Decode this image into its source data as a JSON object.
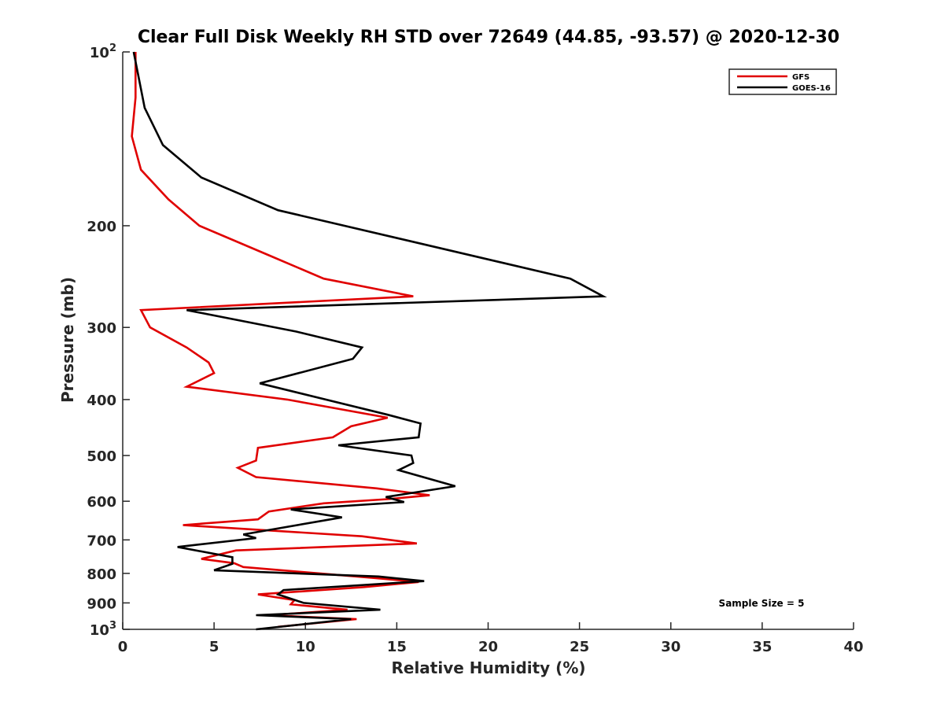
{
  "chart_data": {
    "type": "line",
    "title": "Clear Full Disk Weekly RH STD over 72649 (44.85, -93.57) @ 2020-12-30",
    "xlabel": "Relative Humidity (%)",
    "ylabel": "Pressure (mb)",
    "xlim": [
      0,
      40
    ],
    "ylim": [
      1000,
      100
    ],
    "yscale": "log",
    "x_ticks": [
      0,
      5,
      10,
      15,
      20,
      25,
      30,
      35,
      40
    ],
    "y_ticks": [
      {
        "value": 100,
        "label": "10",
        "sup": "2"
      },
      {
        "value": 200,
        "label": "200",
        "sup": ""
      },
      {
        "value": 300,
        "label": "300",
        "sup": ""
      },
      {
        "value": 400,
        "label": "400",
        "sup": ""
      },
      {
        "value": 500,
        "label": "500",
        "sup": ""
      },
      {
        "value": 600,
        "label": "600",
        "sup": ""
      },
      {
        "value": 700,
        "label": "700",
        "sup": ""
      },
      {
        "value": 800,
        "label": "800",
        "sup": ""
      },
      {
        "value": 900,
        "label": "900",
        "sup": ""
      },
      {
        "value": 1000,
        "label": "10",
        "sup": "3"
      }
    ],
    "grid": false,
    "legend_position": "top-right",
    "annotation": "Sample Size = 5",
    "series": [
      {
        "name": "GFS",
        "color": "#e00000",
        "points": [
          [
            0.7,
            100
          ],
          [
            0.7,
            120
          ],
          [
            0.5,
            140
          ],
          [
            1.0,
            160
          ],
          [
            2.5,
            180
          ],
          [
            4.2,
            200
          ],
          [
            8.0,
            225
          ],
          [
            11.0,
            247
          ],
          [
            15.9,
            265
          ],
          [
            1.0,
            280
          ],
          [
            1.5,
            300
          ],
          [
            3.5,
            325
          ],
          [
            4.7,
            345
          ],
          [
            5.0,
            360
          ],
          [
            3.5,
            380
          ],
          [
            9.0,
            400
          ],
          [
            14.5,
            430
          ],
          [
            12.5,
            445
          ],
          [
            11.5,
            465
          ],
          [
            7.4,
            485
          ],
          [
            7.3,
            510
          ],
          [
            6.3,
            525
          ],
          [
            7.3,
            545
          ],
          [
            13.9,
            570
          ],
          [
            16.8,
            586
          ],
          [
            14.5,
            595
          ],
          [
            11.0,
            605
          ],
          [
            8.0,
            625
          ],
          [
            7.4,
            645
          ],
          [
            3.3,
            660
          ],
          [
            13.1,
            690
          ],
          [
            16.1,
            710
          ],
          [
            6.2,
            730
          ],
          [
            4.3,
            755
          ],
          [
            6.1,
            768
          ],
          [
            6.6,
            780
          ],
          [
            13.8,
            815
          ],
          [
            16.2,
            828
          ],
          [
            13.2,
            845
          ],
          [
            7.4,
            870
          ],
          [
            9.4,
            890
          ],
          [
            9.2,
            905
          ],
          [
            12.3,
            925
          ],
          [
            8.0,
            945
          ],
          [
            12.8,
            960
          ],
          [
            8.5,
            990
          ]
        ]
      },
      {
        "name": "GOES-16",
        "color": "#000000",
        "points": [
          [
            0.6,
            100
          ],
          [
            1.2,
            125
          ],
          [
            2.2,
            145
          ],
          [
            4.3,
            165
          ],
          [
            8.5,
            188
          ],
          [
            24.5,
            247
          ],
          [
            26.3,
            265
          ],
          [
            3.5,
            280
          ],
          [
            9.5,
            305
          ],
          [
            13.1,
            325
          ],
          [
            12.6,
            340
          ],
          [
            7.5,
            375
          ],
          [
            14.5,
            425
          ],
          [
            16.3,
            440
          ],
          [
            16.2,
            465
          ],
          [
            11.8,
            480
          ],
          [
            15.8,
            500
          ],
          [
            15.9,
            515
          ],
          [
            15.1,
            530
          ],
          [
            18.2,
            565
          ],
          [
            14.4,
            590
          ],
          [
            15.4,
            602
          ],
          [
            9.2,
            620
          ],
          [
            12.0,
            640
          ],
          [
            6.6,
            685
          ],
          [
            7.3,
            695
          ],
          [
            3.0,
            720
          ],
          [
            6.0,
            750
          ],
          [
            6.0,
            770
          ],
          [
            5.0,
            790
          ],
          [
            14.0,
            810
          ],
          [
            16.5,
            825
          ],
          [
            8.8,
            855
          ],
          [
            8.5,
            870
          ],
          [
            9.9,
            900
          ],
          [
            14.1,
            925
          ],
          [
            7.3,
            945
          ],
          [
            12.5,
            960
          ],
          [
            7.3,
            1000
          ]
        ]
      }
    ]
  }
}
